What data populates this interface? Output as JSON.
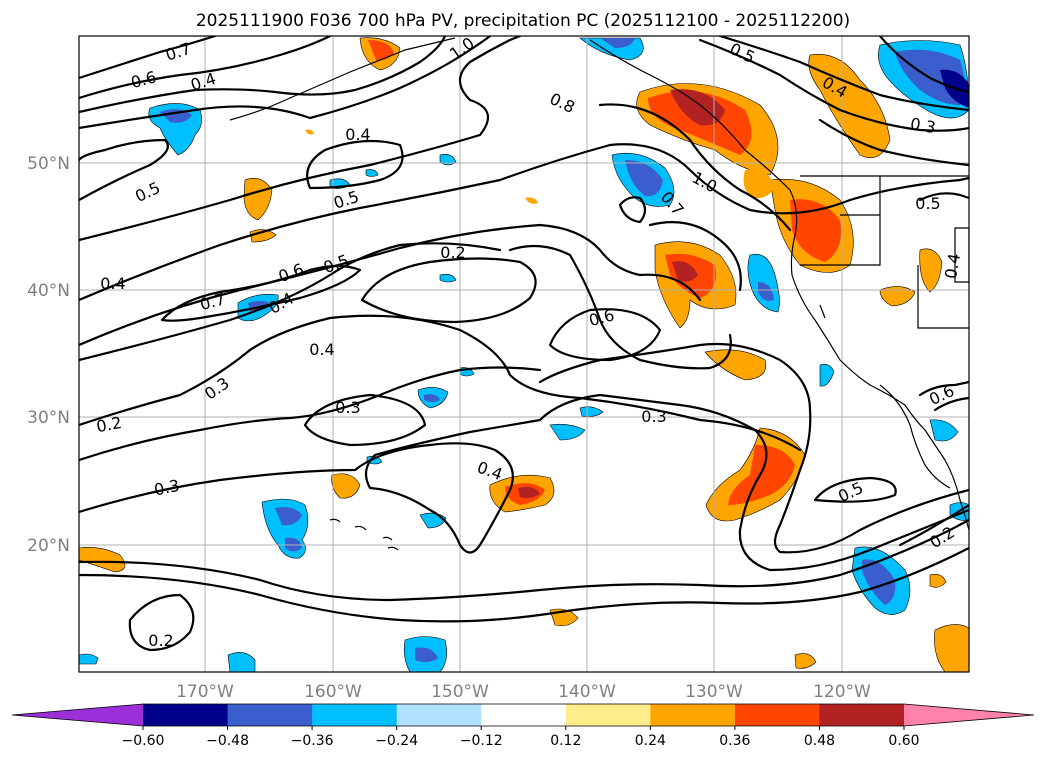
{
  "title": "2025111900 F036 700 hPa PV, precipitation PC (2025112100 - 2025112200)",
  "lat_labels": [
    "50°N",
    "40°N",
    "30°N",
    "20°N"
  ],
  "lon_labels": [
    "170°W",
    "160°W",
    "150°W",
    "140°W",
    "130°W",
    "120°W"
  ],
  "contour_labels": [
    "0.7",
    "0.6",
    "0.4",
    "1.0",
    "0.5",
    "0.4",
    "0.3",
    "0.8",
    "0.4",
    "0.5",
    "0.5",
    "1.0",
    "0.7",
    "0.5",
    "0.2",
    "0.4",
    "0.6",
    "0.5",
    "0.7",
    "0.4",
    "0.4",
    "0.4",
    "0.6",
    "0.3",
    "0.3",
    "0.2",
    "0.3",
    "0.4",
    "0.3",
    "0.5",
    "0.6",
    "0.2",
    "0.2"
  ],
  "colorbar": {
    "ticks": [
      "−0.60",
      "−0.48",
      "−0.36",
      "−0.24",
      "−0.12",
      "0.12",
      "0.24",
      "0.36",
      "0.48",
      "0.60"
    ],
    "colors": [
      "#9b30d9",
      "#00008b",
      "#3a5fcd",
      "#00bfff",
      "#b0e2ff",
      "#ffffff",
      "#ffec8b",
      "#ffa500",
      "#ff4500",
      "#b22222",
      "#ff82ab"
    ]
  }
}
